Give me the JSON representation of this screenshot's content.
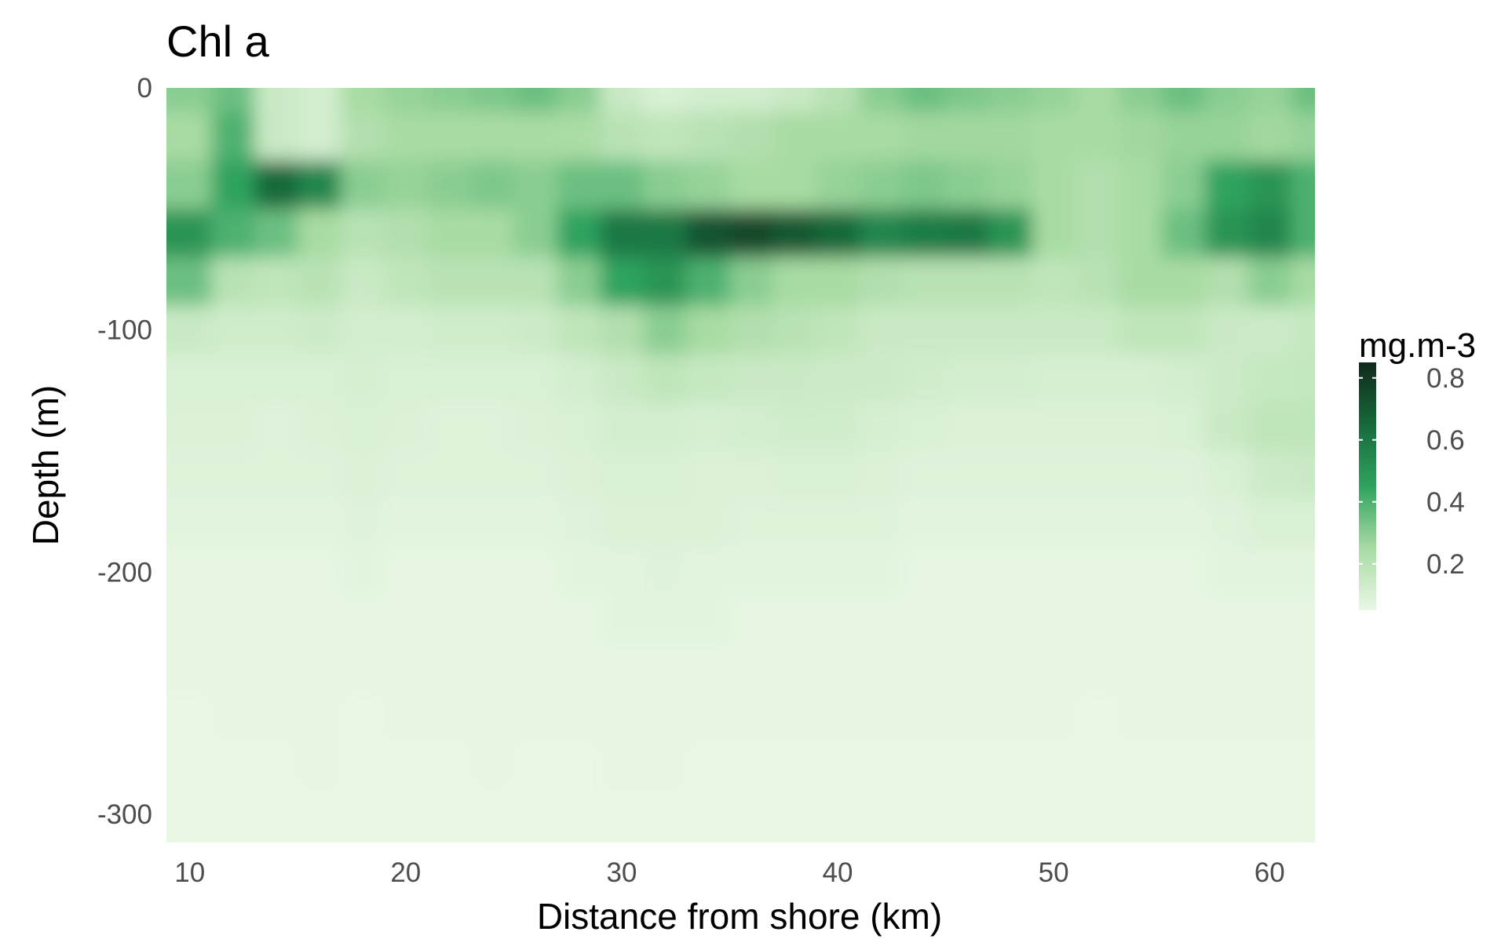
{
  "chart_data": {
    "type": "heatmap",
    "title": "Chl a",
    "x_label": "Distance from shore (km)",
    "y_label": "Depth (m)",
    "x": [
      10,
      12,
      14,
      16,
      18,
      20,
      22,
      24,
      26,
      28,
      30,
      32,
      34,
      36,
      38,
      40,
      42,
      44,
      46,
      48,
      50,
      52,
      54,
      56,
      58,
      60,
      62
    ],
    "y": [
      0,
      -20,
      -40,
      -60,
      -80,
      -100,
      -120,
      -140,
      -160,
      -180,
      -200,
      -220,
      -240,
      -260,
      -280,
      -300
    ],
    "z": [
      [
        0.3,
        0.35,
        0.15,
        0.12,
        0.25,
        0.28,
        0.3,
        0.32,
        0.35,
        0.3,
        0.15,
        0.1,
        0.12,
        0.12,
        0.15,
        0.2,
        0.3,
        0.35,
        0.32,
        0.3,
        0.28,
        0.25,
        0.3,
        0.35,
        0.3,
        0.28,
        0.35
      ],
      [
        0.25,
        0.4,
        0.15,
        0.12,
        0.22,
        0.25,
        0.25,
        0.25,
        0.25,
        0.24,
        0.2,
        0.18,
        0.2,
        0.22,
        0.25,
        0.25,
        0.25,
        0.26,
        0.26,
        0.26,
        0.25,
        0.25,
        0.26,
        0.28,
        0.28,
        0.26,
        0.28
      ],
      [
        0.3,
        0.45,
        0.65,
        0.55,
        0.3,
        0.28,
        0.3,
        0.32,
        0.3,
        0.35,
        0.35,
        0.3,
        0.28,
        0.25,
        0.25,
        0.28,
        0.3,
        0.32,
        0.3,
        0.28,
        0.25,
        0.22,
        0.25,
        0.3,
        0.45,
        0.5,
        0.4
      ],
      [
        0.5,
        0.4,
        0.35,
        0.25,
        0.2,
        0.22,
        0.25,
        0.25,
        0.3,
        0.45,
        0.6,
        0.6,
        0.72,
        0.75,
        0.7,
        0.65,
        0.55,
        0.58,
        0.6,
        0.5,
        0.25,
        0.22,
        0.25,
        0.35,
        0.5,
        0.55,
        0.4
      ],
      [
        0.35,
        0.2,
        0.18,
        0.2,
        0.15,
        0.18,
        0.2,
        0.2,
        0.2,
        0.3,
        0.45,
        0.5,
        0.4,
        0.3,
        0.25,
        0.25,
        0.22,
        0.2,
        0.2,
        0.2,
        0.18,
        0.2,
        0.25,
        0.25,
        0.22,
        0.3,
        0.25
      ],
      [
        0.15,
        0.13,
        0.13,
        0.14,
        0.12,
        0.12,
        0.13,
        0.13,
        0.14,
        0.18,
        0.22,
        0.3,
        0.25,
        0.22,
        0.2,
        0.18,
        0.15,
        0.15,
        0.15,
        0.15,
        0.15,
        0.15,
        0.18,
        0.18,
        0.15,
        0.14,
        0.16
      ],
      [
        0.1,
        0.1,
        0.1,
        0.1,
        0.11,
        0.1,
        0.1,
        0.1,
        0.1,
        0.12,
        0.15,
        0.18,
        0.16,
        0.15,
        0.15,
        0.14,
        0.14,
        0.13,
        0.12,
        0.12,
        0.11,
        0.11,
        0.11,
        0.12,
        0.14,
        0.16,
        0.17
      ],
      [
        0.09,
        0.09,
        0.08,
        0.09,
        0.1,
        0.09,
        0.08,
        0.08,
        0.09,
        0.1,
        0.12,
        0.12,
        0.11,
        0.12,
        0.13,
        0.13,
        0.11,
        0.1,
        0.09,
        0.09,
        0.09,
        0.09,
        0.09,
        0.1,
        0.15,
        0.18,
        0.18
      ],
      [
        0.08,
        0.08,
        0.08,
        0.08,
        0.09,
        0.08,
        0.08,
        0.08,
        0.08,
        0.09,
        0.1,
        0.1,
        0.09,
        0.09,
        0.1,
        0.1,
        0.09,
        0.08,
        0.08,
        0.08,
        0.08,
        0.08,
        0.08,
        0.08,
        0.1,
        0.14,
        0.15
      ],
      [
        0.07,
        0.07,
        0.07,
        0.07,
        0.08,
        0.07,
        0.07,
        0.07,
        0.07,
        0.08,
        0.09,
        0.09,
        0.09,
        0.08,
        0.08,
        0.08,
        0.08,
        0.07,
        0.07,
        0.07,
        0.07,
        0.07,
        0.07,
        0.07,
        0.08,
        0.1,
        0.1
      ],
      [
        0.06,
        0.06,
        0.06,
        0.06,
        0.07,
        0.06,
        0.06,
        0.06,
        0.06,
        0.07,
        0.07,
        0.08,
        0.07,
        0.07,
        0.07,
        0.07,
        0.07,
        0.06,
        0.06,
        0.06,
        0.06,
        0.06,
        0.06,
        0.06,
        0.07,
        0.07,
        0.07
      ],
      [
        0.06,
        0.06,
        0.06,
        0.06,
        0.06,
        0.06,
        0.06,
        0.06,
        0.06,
        0.06,
        0.07,
        0.07,
        0.07,
        0.06,
        0.06,
        0.06,
        0.06,
        0.06,
        0.06,
        0.06,
        0.06,
        0.06,
        0.06,
        0.06,
        0.06,
        0.06,
        0.06
      ],
      [
        0.06,
        0.06,
        0.06,
        0.06,
        0.06,
        0.06,
        0.06,
        0.06,
        0.06,
        0.06,
        0.06,
        0.06,
        0.06,
        0.06,
        0.06,
        0.06,
        0.06,
        0.06,
        0.06,
        0.06,
        0.06,
        0.06,
        0.06,
        0.06,
        0.06,
        0.06,
        0.06
      ],
      [
        0.05,
        0.06,
        0.06,
        0.06,
        0.05,
        0.06,
        0.06,
        0.06,
        0.06,
        0.06,
        0.06,
        0.06,
        0.06,
        0.06,
        0.06,
        0.06,
        0.06,
        0.06,
        0.06,
        0.06,
        0.06,
        0.05,
        0.06,
        0.06,
        0.06,
        0.06,
        0.06
      ],
      [
        0.05,
        0.05,
        0.05,
        0.06,
        0.05,
        0.05,
        0.05,
        0.06,
        0.05,
        0.05,
        0.06,
        0.06,
        0.05,
        0.05,
        0.05,
        0.05,
        0.05,
        0.05,
        0.05,
        0.05,
        0.05,
        0.05,
        0.05,
        0.05,
        0.05,
        0.05,
        0.05
      ],
      [
        0.05,
        0.05,
        0.05,
        0.05,
        0.05,
        0.05,
        0.05,
        0.05,
        0.05,
        0.05,
        0.05,
        0.05,
        0.05,
        0.05,
        0.05,
        0.05,
        0.05,
        0.05,
        0.05,
        0.05,
        0.05,
        0.05,
        0.05,
        0.05,
        0.05,
        0.05,
        0.05
      ]
    ],
    "xlim": [
      8.92,
      62.1
    ],
    "ylim": [
      -311.6,
      0
    ],
    "xticks": [
      10,
      20,
      30,
      40,
      50,
      60
    ],
    "yticks": [
      -300,
      -200,
      -100,
      0
    ],
    "colorbar_title": "mg.m-3",
    "zlim": [
      0.05,
      0.85
    ],
    "colorbar_ticks": [
      0.2,
      0.4,
      0.6,
      0.8
    ],
    "colors": [
      "#e9f7e5",
      "#a8dba3",
      "#2fa35e",
      "#16693b",
      "#102a1b"
    ]
  }
}
